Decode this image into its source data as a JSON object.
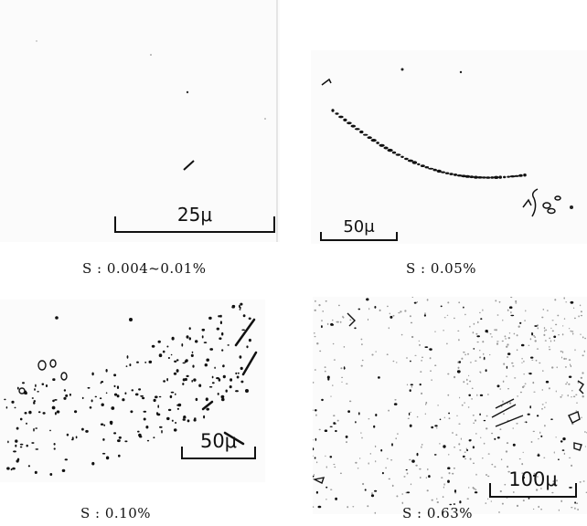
{
  "panels": [
    {
      "caption": "S : 0.004~0.01%",
      "scale_label": "25μ"
    },
    {
      "caption": "S : 0.05%",
      "scale_label": "50μ"
    },
    {
      "caption": "S : 0.10%",
      "scale_label": "50μ"
    },
    {
      "caption": "S : 0.63%",
      "scale_label": "100μ"
    }
  ],
  "colors": {
    "background": "#ffffff",
    "inclusion": "#111111",
    "speckle": "#9a9a9a"
  }
}
